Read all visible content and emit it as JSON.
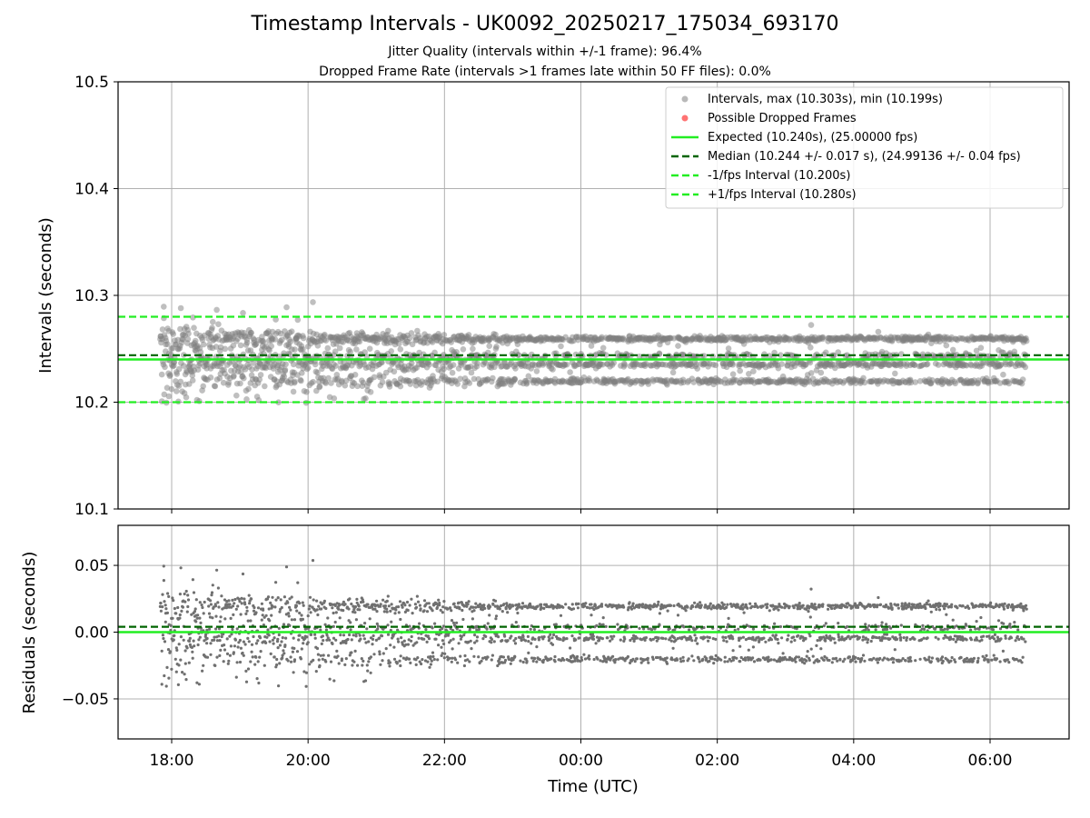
{
  "header": {
    "title": "Timestamp Intervals - UK0092_20250217_175034_693170",
    "subtitle_jitter": "Jitter Quality (intervals within +/-1 frame): 96.4%",
    "subtitle_dropped": "Dropped Frame Rate (intervals >1 frames late within 50 FF files): 0.0%"
  },
  "colors": {
    "points": "#808080",
    "dropped": "#ff0000",
    "expected": "#22ee22",
    "median": "#006400",
    "grid": "#b0b0b0"
  },
  "chart_data": [
    {
      "type": "scatter",
      "panel": "intervals",
      "ylabel": "Intervals (seconds)",
      "ylim": [
        10.1,
        10.5
      ],
      "y_ticks": [
        "10.1",
        "10.2",
        "10.3",
        "10.4",
        "10.5"
      ],
      "grid": true,
      "legend_position": "top-right",
      "legend": [
        "Intervals, max (10.303s), min (10.199s)",
        "Possible Dropped Frames",
        "Expected (10.240s), (25.00000 fps)",
        "Median (10.244 +/- 0.017 s), (24.99136 +/- 0.04 fps)",
        "-1/fps Interval (10.200s)",
        "+1/fps Interval (10.280s)"
      ],
      "reference_lines": {
        "expected": 10.24,
        "median": 10.244,
        "minus_one_fps": 10.2,
        "plus_one_fps": 10.28
      },
      "stats": {
        "max": 10.303,
        "min": 10.199,
        "dropped_count": 0
      },
      "bands": [
        {
          "center": 10.2195,
          "weight_early": 0.12,
          "weight_late": 0.26
        },
        {
          "center": 10.2355,
          "weight_early": 0.18,
          "weight_late": 0.22
        },
        {
          "center": 10.2435,
          "weight_early": 0.1,
          "weight_late": 0.14
        },
        {
          "center": 10.2595,
          "weight_early": 0.36,
          "weight_late": 0.38
        }
      ],
      "time_range_utc": [
        "17:50",
        "06:32"
      ]
    },
    {
      "type": "scatter",
      "panel": "residuals",
      "xlabel": "Time (UTC)",
      "ylabel": "Residuals (seconds)",
      "ylim": [
        -0.08,
        0.08
      ],
      "y_ticks": [
        "−0.05",
        "0.00",
        "0.05"
      ],
      "x_ticks": [
        "18:00",
        "20:00",
        "22:00",
        "00:00",
        "02:00",
        "04:00",
        "06:00"
      ],
      "grid": true,
      "reference_lines": {
        "zero": 0.0,
        "median_offset": 0.004
      }
    }
  ]
}
